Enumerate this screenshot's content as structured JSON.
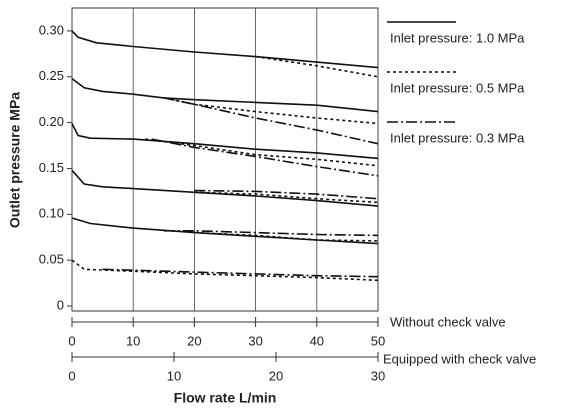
{
  "chart_data": {
    "type": "line",
    "y_label": "Outlet pressure MPa",
    "x_label": "Flow rate L/min",
    "x_axis_note": "Without check valve",
    "x2_axis_note": "Equipped with check valve",
    "xlim": [
      0,
      50
    ],
    "xticks": [
      0,
      10,
      20,
      30,
      40,
      50
    ],
    "x2lim": [
      0,
      30
    ],
    "x2ticks": [
      0,
      10,
      20,
      30
    ],
    "ylim": [
      0,
      0.325
    ],
    "yticks": [
      0,
      {
        "value": 0.05,
        "label": "0.05"
      },
      {
        "value": 0.1,
        "label": "0.10"
      },
      {
        "value": 0.15,
        "label": "0.15"
      },
      {
        "value": 0.2,
        "label": "0.20"
      },
      {
        "value": 0.25,
        "label": "0.25"
      },
      {
        "value": 0.3,
        "label": "0.30"
      }
    ],
    "grid": true,
    "series": [
      {
        "name": "Inlet pressure: 1.0 MPa",
        "color": "#111111",
        "dash": "solid",
        "lines": [
          {
            "x": [
              0,
              1,
              4,
              10,
              20,
              30,
              40,
              50
            ],
            "values": [
              0.3,
              0.293,
              0.287,
              0.283,
              0.277,
              0.272,
              0.266,
              0.26
            ]
          },
          {
            "x": [
              0,
              2,
              5,
              10,
              15,
              20,
              30,
              40,
              50
            ],
            "values": [
              0.248,
              0.238,
              0.234,
              0.231,
              0.227,
              0.225,
              0.222,
              0.219,
              0.212
            ]
          },
          {
            "x": [
              0,
              1,
              3,
              10,
              20,
              30,
              40,
              50
            ],
            "values": [
              0.199,
              0.186,
              0.183,
              0.182,
              0.177,
              0.171,
              0.167,
              0.161
            ]
          },
          {
            "x": [
              0,
              2,
              5,
              10,
              20,
              30,
              40,
              50
            ],
            "values": [
              0.148,
              0.133,
              0.13,
              0.128,
              0.124,
              0.12,
              0.115,
              0.109
            ]
          },
          {
            "x": [
              0,
              3,
              10,
              20,
              30,
              40,
              50
            ],
            "values": [
              0.096,
              0.09,
              0.085,
              0.08,
              0.076,
              0.072,
              0.068
            ]
          }
        ]
      },
      {
        "name": "Inlet pressure: 0.5 MPa",
        "color": "#111111",
        "dash": "dotted",
        "lines": [
          {
            "x": [
              30,
              40,
              50
            ],
            "values": [
              0.272,
              0.262,
              0.25
            ]
          },
          {
            "x": [
              15,
              20,
              30,
              40,
              50
            ],
            "values": [
              0.227,
              0.22,
              0.212,
              0.205,
              0.199
            ]
          },
          {
            "x": [
              12,
              20,
              30,
              40,
              50
            ],
            "values": [
              0.182,
              0.175,
              0.165,
              0.16,
              0.153
            ]
          },
          {
            "x": [
              20,
              30,
              40,
              50
            ],
            "values": [
              0.124,
              0.122,
              0.117,
              0.113
            ]
          },
          {
            "x": [
              20,
              30,
              40,
              50
            ],
            "values": [
              0.08,
              0.077,
              0.072,
              0.071
            ]
          },
          {
            "x": [
              0,
              2,
              10,
              20,
              30,
              40,
              50
            ],
            "values": [
              0.05,
              0.04,
              0.038,
              0.035,
              0.033,
              0.031,
              0.028
            ]
          }
        ]
      },
      {
        "name": "Inlet pressure: 0.3 MPa",
        "color": "#111111",
        "dash": "dashdot",
        "lines": [
          {
            "x": [
              15,
              20,
              30,
              40,
              50
            ],
            "values": [
              0.227,
              0.22,
              0.205,
              0.192,
              0.177
            ]
          },
          {
            "x": [
              13,
              20,
              30,
              40,
              50
            ],
            "values": [
              0.182,
              0.173,
              0.163,
              0.152,
              0.142
            ]
          },
          {
            "x": [
              20,
              30,
              40,
              50
            ],
            "values": [
              0.126,
              0.125,
              0.122,
              0.117
            ]
          },
          {
            "x": [
              15,
              20,
              30,
              40,
              50
            ],
            "values": [
              0.082,
              0.082,
              0.08,
              0.078,
              0.077
            ]
          },
          {
            "x": [
              5,
              10,
              20,
              30,
              40,
              50
            ],
            "values": [
              0.04,
              0.039,
              0.037,
              0.035,
              0.033,
              0.032
            ]
          }
        ]
      }
    ]
  }
}
